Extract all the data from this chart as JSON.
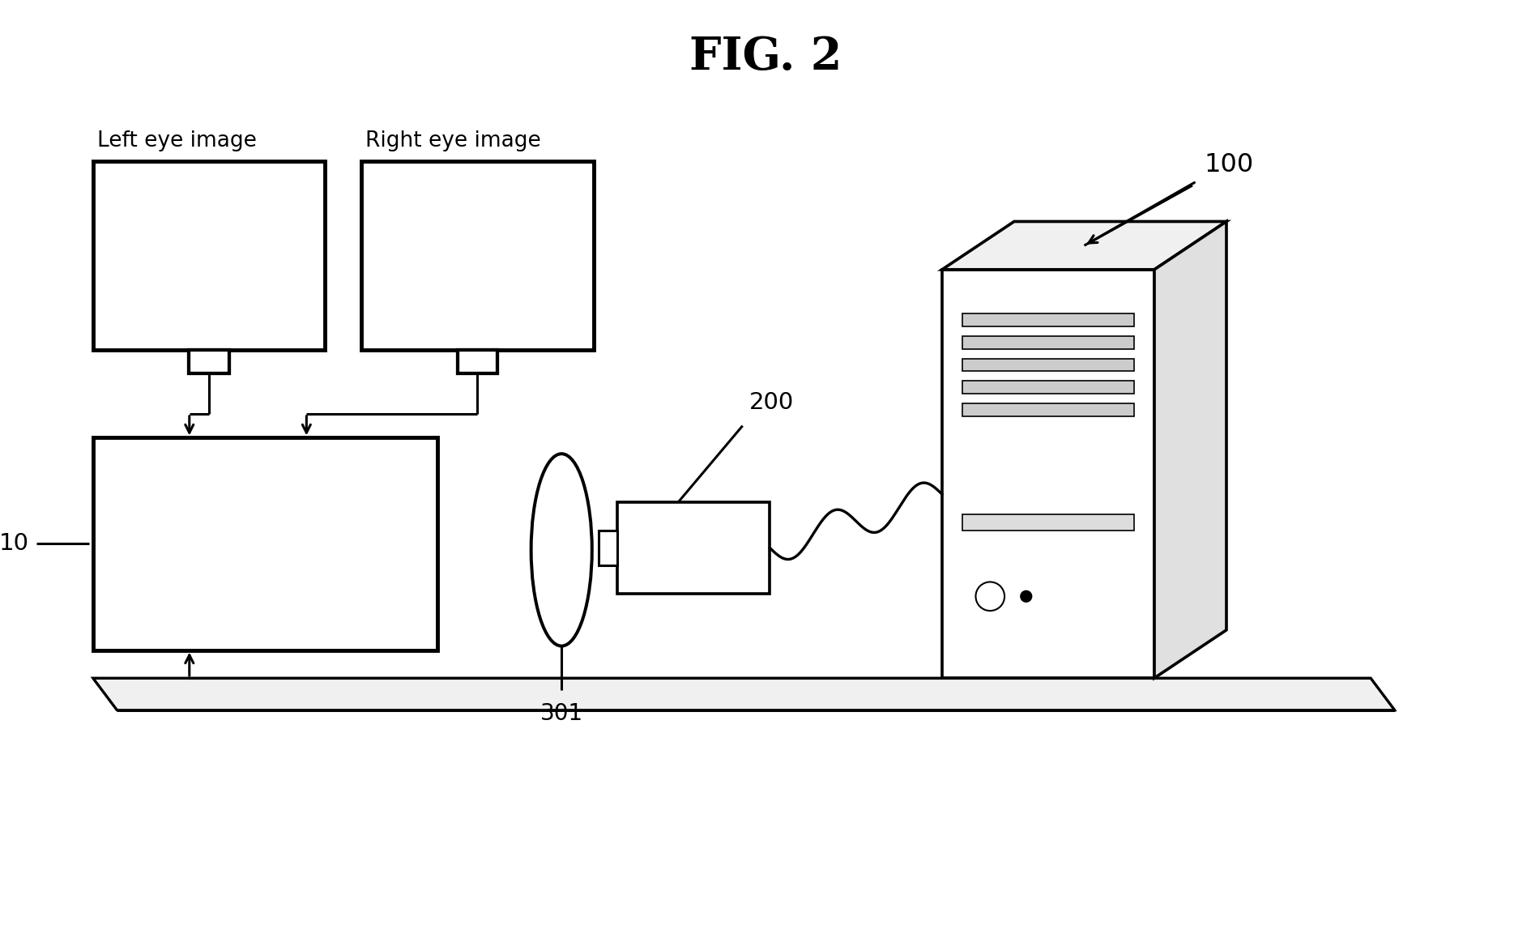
{
  "title": "FIG. 2",
  "title_fontsize": 40,
  "title_fontweight": "bold",
  "bg_color": "#ffffff",
  "line_color": "#000000",
  "lw": 2.2,
  "labels": {
    "left_eye": "Left eye image",
    "right_eye": "Right eye image",
    "label_10": "10",
    "label_100": "100",
    "label_200": "200",
    "label_301": "301"
  },
  "label_fontsize": 19
}
